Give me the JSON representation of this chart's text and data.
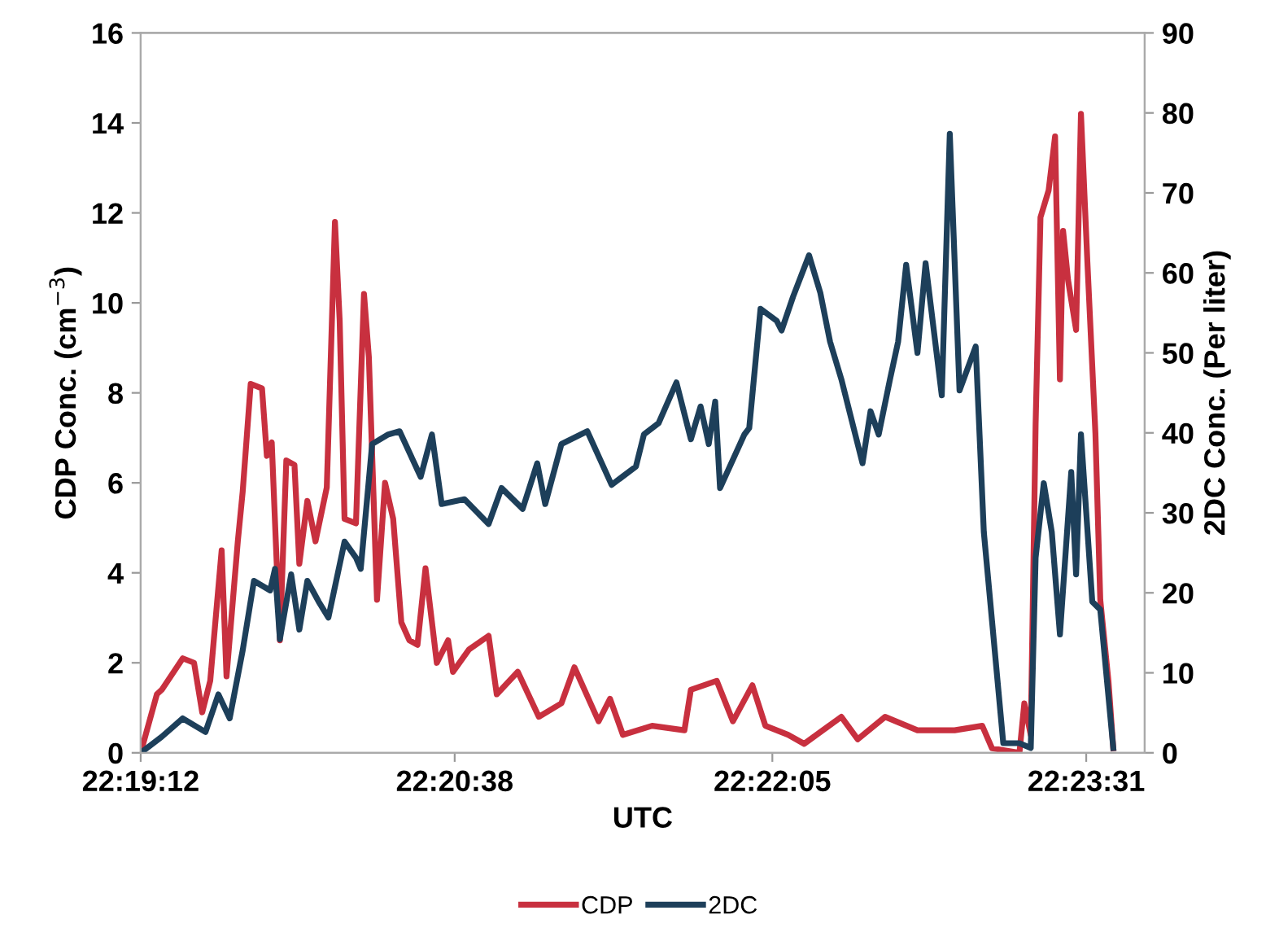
{
  "chart_data": {
    "type": "line",
    "xlabel": "UTC",
    "ylabel": "CDP Conc. (cm$^{−3}$)",
    "y2label": "2DC Conc. (Per liter)",
    "xlim": [
      22.32,
      22.39639
    ],
    "xticks": [
      {
        "value": 22.32,
        "label": "22:19:12"
      },
      {
        "value": 22.34389,
        "label": "22:20:38"
      },
      {
        "value": 22.36806,
        "label": "22:22:05"
      },
      {
        "value": 22.39194,
        "label": "22:23:31"
      }
    ],
    "ylim": [
      0,
      16
    ],
    "yticks": [
      0,
      2,
      4,
      6,
      8,
      10,
      12,
      14,
      16
    ],
    "y2lim": [
      0,
      90
    ],
    "y2ticks": [
      0,
      10,
      20,
      30,
      40,
      50,
      60,
      70,
      80,
      90
    ],
    "grid": false,
    "legend": "bottom",
    "marker": "none",
    "line_style": "solid",
    "series": [
      {
        "name": "CDP",
        "color": "#c8303f",
        "x": [
          22.32,
          22.32123,
          22.3216,
          22.3232,
          22.32406,
          22.32468,
          22.32529,
          22.32616,
          22.32653,
          22.32739,
          22.32776,
          22.32837,
          22.32923,
          22.3296,
          22.32997,
          22.33059,
          22.33108,
          22.3317,
          22.33207,
          22.33268,
          22.3333,
          22.33416,
          22.33478,
          22.33514,
          22.33551,
          22.33638,
          22.33699,
          22.33736,
          22.33798,
          22.33859,
          22.33921,
          22.33983,
          22.34044,
          22.34106,
          22.34167,
          22.34253,
          22.34339,
          22.34376,
          22.34499,
          22.34647,
          22.34709,
          22.34869,
          22.35029,
          22.35201,
          22.353,
          22.35484,
          22.35571,
          22.35669,
          22.35891,
          22.36137,
          22.36186,
          22.36383,
          22.36506,
          22.36654,
          22.36753,
          22.36839,
          22.36925,
          22.37048,
          22.37331,
          22.37455,
          22.37664,
          22.3791,
          22.38193,
          22.38403,
          22.38477,
          22.38686,
          22.38723,
          22.38772,
          22.38809,
          22.38846,
          22.38908,
          22.38957,
          22.38994,
          22.39018,
          22.39056,
          22.39117,
          22.39154,
          22.39203,
          22.39264,
          22.39301,
          22.39363,
          22.394
        ],
        "values": [
          0,
          1.3,
          1.4,
          2.1,
          2.0,
          0.9,
          1.6,
          4.5,
          1.7,
          4.7,
          5.8,
          8.2,
          8.1,
          6.6,
          6.9,
          2.5,
          6.5,
          6.4,
          4.2,
          5.6,
          4.7,
          5.9,
          11.8,
          9.6,
          5.2,
          5.1,
          10.2,
          8.8,
          3.4,
          6.0,
          5.2,
          2.9,
          2.5,
          2.4,
          4.1,
          2.0,
          2.5,
          1.8,
          2.3,
          2.6,
          1.3,
          1.8,
          0.8,
          1.1,
          1.9,
          0.7,
          1.2,
          0.4,
          0.6,
          0.5,
          1.4,
          1.6,
          0.7,
          1.5,
          0.6,
          0.5,
          0.4,
          0.2,
          0.8,
          0.3,
          0.8,
          0.5,
          0.5,
          0.6,
          0.1,
          0,
          1.1,
          0.4,
          7.3,
          11.9,
          12.5,
          13.7,
          8.3,
          11.6,
          10.5,
          9.4,
          14.2,
          10.9,
          7.1,
          3.4,
          1.6,
          0.1
        ]
      },
      {
        "name": "2DC",
        "color": "#1d3f5a",
        "axis": "y2",
        "x": [
          22.32,
          22.3216,
          22.3232,
          22.32493,
          22.32591,
          22.32677,
          22.32776,
          22.32862,
          22.32985,
          22.33022,
          22.33059,
          22.33145,
          22.33207,
          22.33268,
          22.33354,
          22.33428,
          22.33551,
          22.33638,
          22.33674,
          22.33761,
          22.33884,
          22.3397,
          22.3413,
          22.34216,
          22.3429,
          22.34463,
          22.34647,
          22.34746,
          22.34906,
          22.35017,
          22.35078,
          22.35201,
          22.35398,
          22.35583,
          22.35768,
          22.35829,
          22.3594,
          22.36076,
          22.36186,
          22.3626,
          22.36322,
          22.36371,
          22.36408,
          22.36593,
          22.3663,
          22.36716,
          22.36839,
          22.36876,
          22.36963,
          22.37085,
          22.37171,
          22.37245,
          22.37331,
          22.37492,
          22.37553,
          22.37615,
          22.37701,
          22.37763,
          22.37824,
          22.3791,
          22.37972,
          22.38095,
          22.38156,
          22.3823,
          22.38353,
          22.38415,
          22.38563,
          22.38686,
          22.38772,
          22.38809,
          22.38871,
          22.38932,
          22.38994,
          22.3908,
          22.39117,
          22.39154,
          22.3924,
          22.39301,
          22.394
        ],
        "values": [
          0,
          2,
          4.3,
          2.6,
          7.3,
          4.3,
          12.8,
          21.5,
          20.3,
          23,
          14.2,
          22.3,
          15.4,
          21.5,
          18.9,
          16.9,
          26.4,
          24.4,
          23,
          38.6,
          39.8,
          40.2,
          34.5,
          39.8,
          31.1,
          31.7,
          28.6,
          33.1,
          30.5,
          36.2,
          31.1,
          38.6,
          40.2,
          33.5,
          35.8,
          39.8,
          41.2,
          46.3,
          39.2,
          43.3,
          38.6,
          43.9,
          33.1,
          39.8,
          40.6,
          55.5,
          54,
          52.8,
          57,
          62.2,
          57.5,
          51.4,
          46.7,
          36.2,
          42.7,
          39.8,
          46.7,
          51.4,
          61,
          50,
          61.2,
          44.7,
          77.4,
          45.3,
          50.8,
          27.6,
          1.2,
          1.2,
          0.6,
          24.4,
          33.7,
          27.6,
          14.8,
          35.1,
          22.3,
          39.8,
          18.9,
          17.9,
          0.6
        ]
      }
    ]
  }
}
